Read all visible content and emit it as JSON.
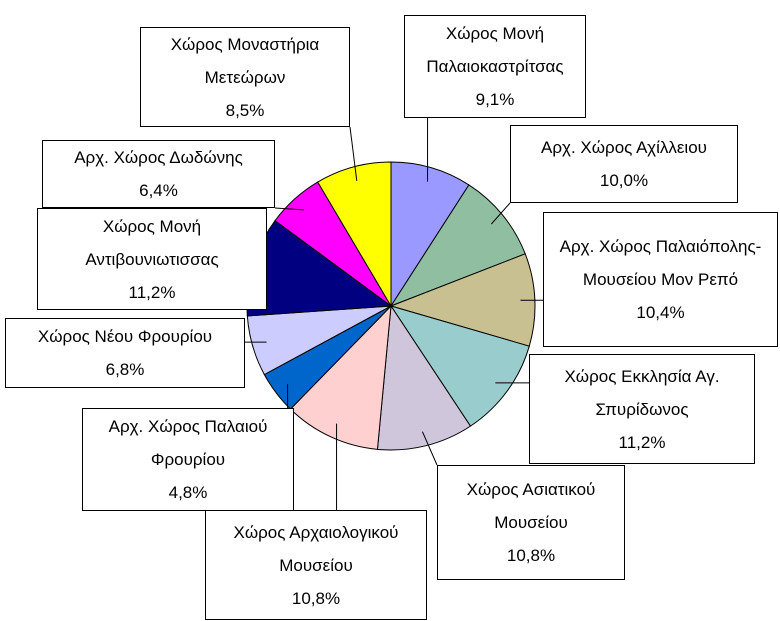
{
  "chart_data": {
    "type": "pie",
    "categories": [
      "Χώρος Μονή Παλαιοκαστρίτσας",
      "Αρχ. Χώρος Αχίλλειου",
      "Αρχ. Χώρος Παλαιόπολης-Μουσείου Μον Ρεπό",
      "Χώρος Εκκλησία Αγ. Σπυρίδωνος",
      "Χώρος Ασιατικού Μουσείου",
      "Χώρος Αρχαιολογικού Μουσείου",
      "Αρχ. Χώρος Παλαιού Φρουρίου",
      "Χώρος Νέου Φρουρίου",
      "Χώρος Μονή Αντιβουνιωτισσας",
      "Αρχ. Χώρος Δωδώνης",
      "Χώρος Μοναστήρια Μετεώρων"
    ],
    "values": [
      9.1,
      10.0,
      10.4,
      11.2,
      10.8,
      10.8,
      4.8,
      6.8,
      11.2,
      6.4,
      8.5
    ],
    "value_labels": [
      "9,1%",
      "10,0%",
      "10,4%",
      "11,2%",
      "10,8%",
      "10,8%",
      "4,8%",
      "6,8%",
      "11,2%",
      "6,4%",
      "8,5%"
    ],
    "colors": [
      "#9999ff",
      "#8fbfa0",
      "#c8c090",
      "#99cccc",
      "#cfc6dc",
      "#ffd0d0",
      "#0066cc",
      "#ccccff",
      "#000080",
      "#ff00ff",
      "#ffff00"
    ]
  }
}
